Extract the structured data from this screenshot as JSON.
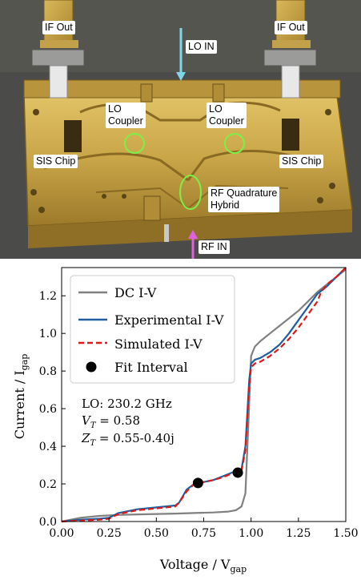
{
  "photo": {
    "labels": {
      "if_out_left": "IF Out",
      "if_out_right": "IF Out",
      "lo_in": "LO IN",
      "lo_coupler_left_1": "LO",
      "lo_coupler_left_2": "Coupler",
      "lo_coupler_right_1": "LO",
      "lo_coupler_right_2": "Coupler",
      "sis_chip_left": "SIS Chip",
      "sis_chip_right": "SIS Chip",
      "rf_hybrid_1": "RF Quadrature",
      "rf_hybrid_2": "Hybrid",
      "rf_in": "RF IN"
    },
    "colors": {
      "block": "#c9a648",
      "block_dark": "#8a6a22",
      "background": "#4a4a48",
      "lo_arrow": "#7fd6e8",
      "rf_arrow": "#e060e0",
      "highlight": "#7cf04a"
    }
  },
  "chart_data": {
    "type": "line",
    "xlabel": "Voltage / V",
    "xlabel_sub": "gap",
    "ylabel": "Current / I",
    "ylabel_sub": "gap",
    "xlim": [
      0.0,
      1.5
    ],
    "ylim": [
      0.0,
      1.35
    ],
    "xticks": [
      "0.00",
      "0.25",
      "0.50",
      "0.75",
      "1.00",
      "1.25",
      "1.50"
    ],
    "xtick_values": [
      0.0,
      0.25,
      0.5,
      0.75,
      1.0,
      1.25,
      1.5
    ],
    "yticks": [
      "0.0",
      "0.2",
      "0.4",
      "0.6",
      "0.8",
      "1.0",
      "1.2"
    ],
    "ytick_values": [
      0.0,
      0.2,
      0.4,
      0.6,
      0.8,
      1.0,
      1.2
    ],
    "grid": false,
    "legend_position": "top-left",
    "series": [
      {
        "name": "DC I-V",
        "color": "#808080",
        "style": "solid",
        "x": [
          0.0,
          0.1,
          0.2,
          0.3,
          0.4,
          0.5,
          0.6,
          0.7,
          0.8,
          0.88,
          0.92,
          0.95,
          0.97,
          0.985,
          1.0,
          1.02,
          1.05,
          1.1,
          1.15,
          1.2,
          1.25,
          1.3,
          1.35,
          1.4,
          1.45,
          1.5
        ],
        "y": [
          0.0,
          0.02,
          0.03,
          0.035,
          0.038,
          0.04,
          0.042,
          0.045,
          0.048,
          0.053,
          0.06,
          0.08,
          0.15,
          0.5,
          0.88,
          0.93,
          0.96,
          1.0,
          1.04,
          1.08,
          1.12,
          1.17,
          1.22,
          1.26,
          1.3,
          1.34
        ]
      },
      {
        "name": "Experimental I-V",
        "color": "#1f5f9f",
        "style": "solid",
        "x": [
          0.0,
          0.1,
          0.2,
          0.25,
          0.3,
          0.4,
          0.5,
          0.6,
          0.62,
          0.66,
          0.7,
          0.75,
          0.8,
          0.85,
          0.9,
          0.95,
          0.97,
          0.99,
          1.0,
          1.02,
          1.05,
          1.1,
          1.15,
          1.2,
          1.25,
          1.3,
          1.35,
          1.4,
          1.45,
          1.5
        ],
        "y": [
          0.0,
          0.01,
          0.015,
          0.02,
          0.045,
          0.065,
          0.075,
          0.085,
          0.1,
          0.17,
          0.2,
          0.21,
          0.22,
          0.24,
          0.26,
          0.28,
          0.4,
          0.75,
          0.84,
          0.86,
          0.87,
          0.9,
          0.94,
          1.0,
          1.07,
          1.14,
          1.21,
          1.25,
          1.3,
          1.35
        ]
      },
      {
        "name": "Simulated I-V",
        "color": "#e01818",
        "style": "dashed",
        "x": [
          0.0,
          0.1,
          0.2,
          0.25,
          0.3,
          0.4,
          0.5,
          0.6,
          0.62,
          0.66,
          0.7,
          0.75,
          0.8,
          0.85,
          0.9,
          0.95,
          0.97,
          0.99,
          1.0,
          1.02,
          1.05,
          1.1,
          1.15,
          1.2,
          1.25,
          1.3,
          1.35,
          1.37,
          1.4,
          1.45,
          1.5
        ],
        "y": [
          0.0,
          0.005,
          0.01,
          0.015,
          0.04,
          0.06,
          0.07,
          0.08,
          0.1,
          0.16,
          0.2,
          0.21,
          0.22,
          0.235,
          0.255,
          0.27,
          0.38,
          0.72,
          0.82,
          0.84,
          0.85,
          0.88,
          0.92,
          0.97,
          1.03,
          1.1,
          1.17,
          1.22,
          1.26,
          1.3,
          1.35
        ]
      },
      {
        "name": "Fit Interval",
        "color": "#000000",
        "style": "marker",
        "x": [
          0.72,
          0.93
        ],
        "y": [
          0.205,
          0.26
        ]
      }
    ],
    "annotation": {
      "line1": "LO: 230.2 GHz",
      "line2_lhs": "V",
      "line2_sub": "T",
      "line2_rhs": " = 0.58",
      "line3_lhs": "Z",
      "line3_sub": "T",
      "line3_rhs": " = 0.55-0.40j"
    }
  }
}
